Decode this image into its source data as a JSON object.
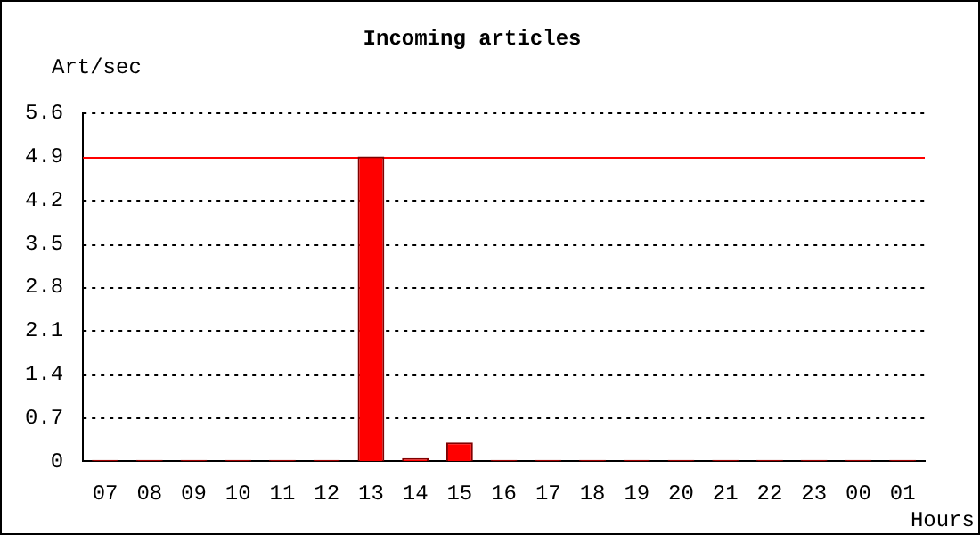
{
  "chart_data": {
    "type": "bar",
    "title": "Incoming articles",
    "ylabel": "Art/sec",
    "xlabel": "Hours",
    "categories": [
      "07",
      "08",
      "09",
      "10",
      "11",
      "12",
      "13",
      "14",
      "15",
      "16",
      "17",
      "18",
      "19",
      "20",
      "21",
      "22",
      "23",
      "00",
      "01"
    ],
    "values": [
      0.02,
      0.02,
      0.02,
      0.02,
      0.02,
      0.02,
      4.9,
      0.05,
      0.3,
      0.02,
      0.02,
      0.02,
      0.02,
      0.02,
      0.02,
      0.02,
      0.02,
      0.02,
      0.02
    ],
    "color": "#ff0000",
    "ylim": [
      0,
      5.6
    ],
    "yticks": [
      0,
      0.7,
      1.4,
      2.1,
      2.8,
      3.5,
      4.2,
      4.9,
      5.6
    ],
    "grid": "y",
    "ref_lines": [
      {
        "axis": "y",
        "value": 4.9,
        "color": "#ff0000"
      }
    ]
  }
}
